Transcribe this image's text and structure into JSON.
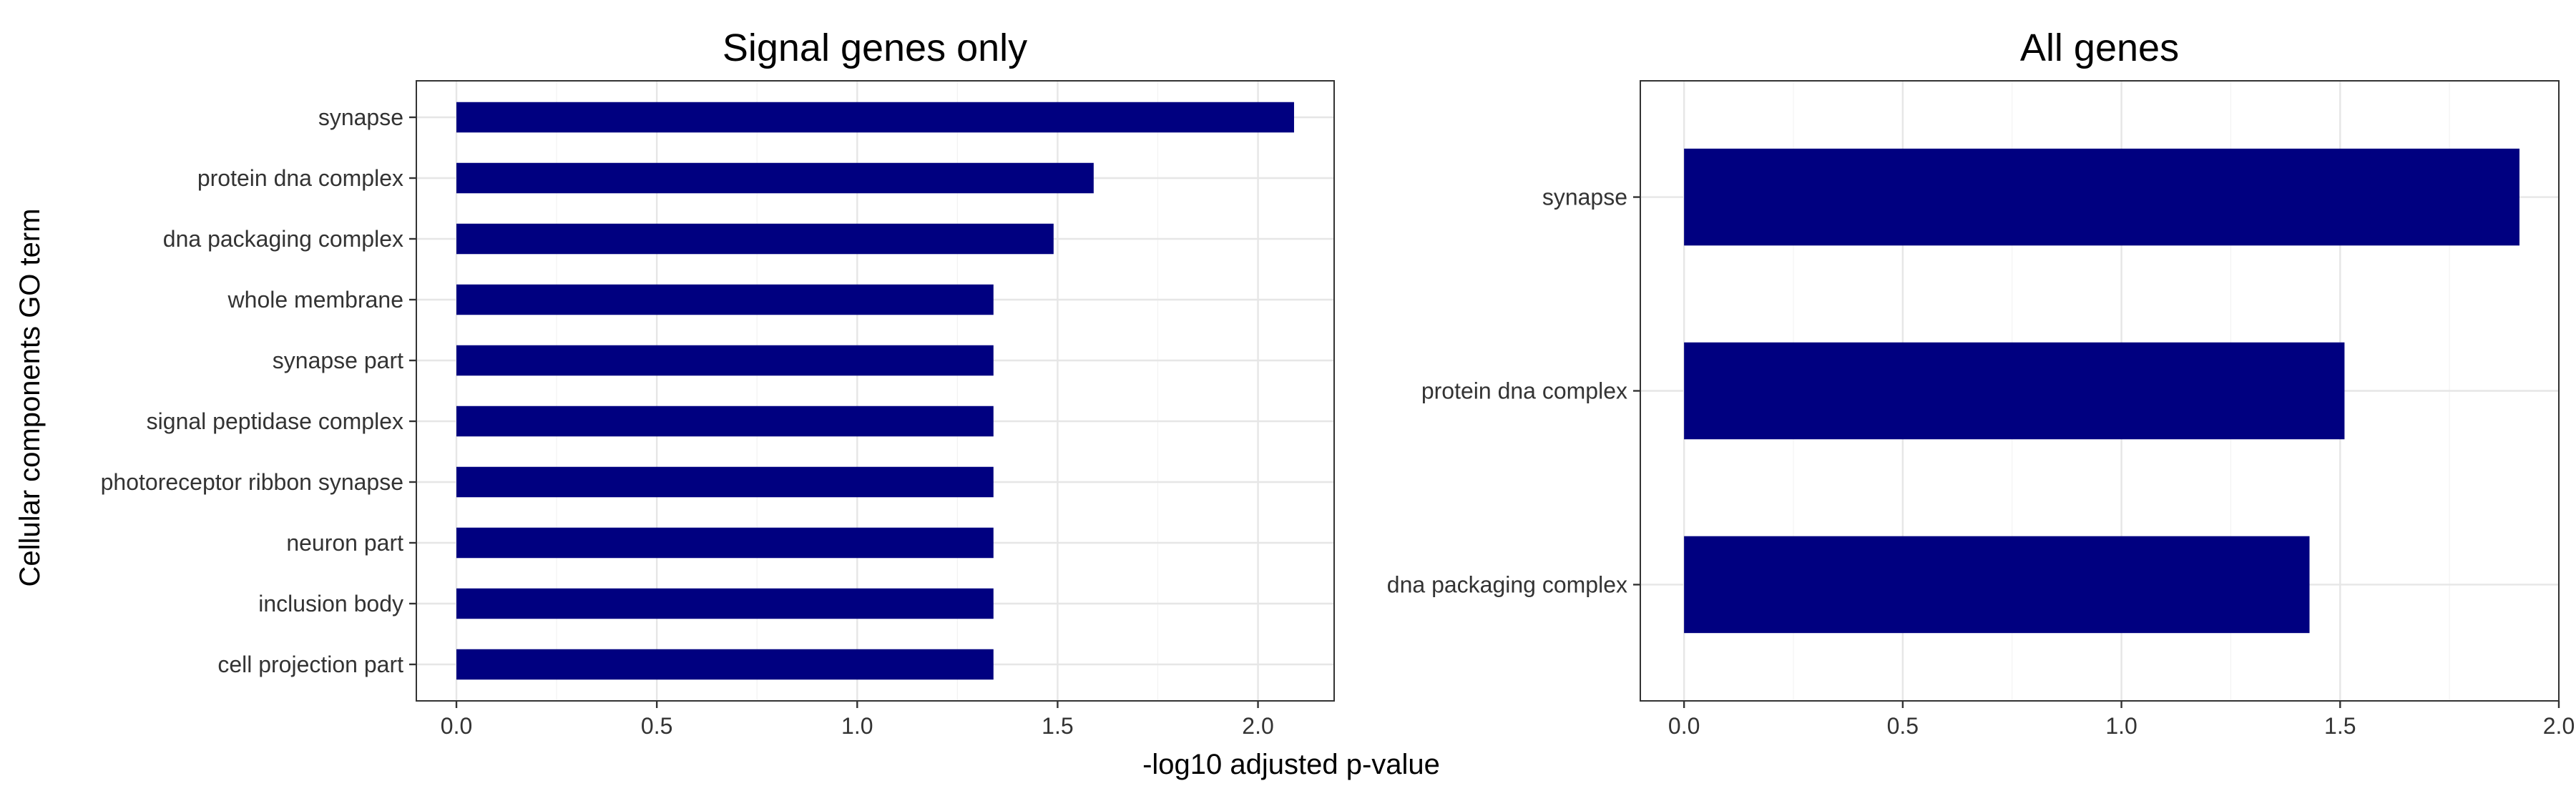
{
  "chart_data": {
    "type": "bar",
    "orientation": "horizontal",
    "shared_xlabel": "-log10 adjusted p-value",
    "shared_ylabel": "Cellular components GO term",
    "bar_color": "#000080",
    "grid": true,
    "panels": [
      {
        "title": "Signal genes only",
        "categories": [
          "synapse",
          "protein dna complex",
          "dna packaging complex",
          "whole membrane",
          "synapse part",
          "signal peptidase complex",
          "photoreceptor ribbon synapse",
          "neuron part",
          "inclusion body",
          "cell projection part"
        ],
        "values": [
          2.09,
          1.59,
          1.49,
          1.34,
          1.34,
          1.34,
          1.34,
          1.34,
          1.34,
          1.34
        ],
        "xlim": [
          -0.1,
          2.19
        ],
        "xticks": [
          "0.0",
          "0.5",
          "1.0",
          "1.5",
          "2.0"
        ]
      },
      {
        "title": "All genes",
        "categories": [
          "synapse",
          "protein dna complex",
          "dna packaging complex"
        ],
        "values": [
          1.91,
          1.51,
          1.43
        ],
        "xlim": [
          -0.1,
          2.0
        ],
        "xticks": [
          "0.0",
          "0.5",
          "1.0",
          "1.5",
          "2.0"
        ]
      }
    ]
  }
}
